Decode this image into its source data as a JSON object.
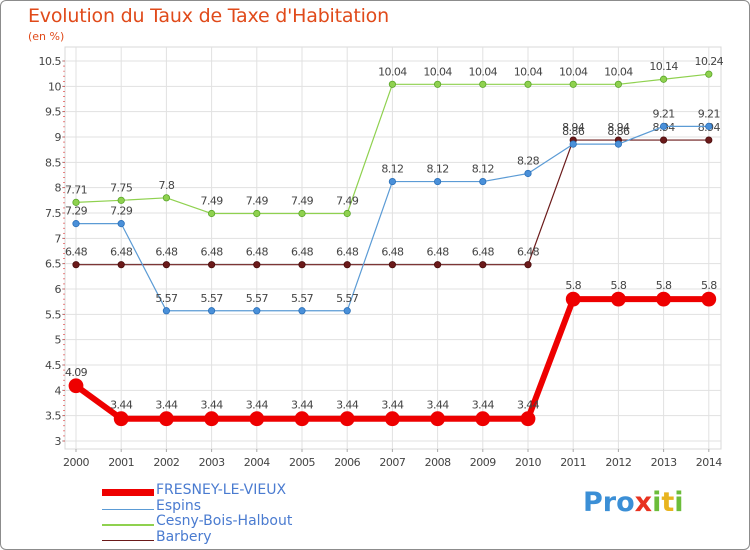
{
  "chart_data": {
    "type": "line",
    "title": "Evolution du Taux de Taxe d'Habitation",
    "subtitle": "(en %)",
    "x": [
      "2000",
      "2001",
      "2002",
      "2003",
      "2004",
      "2005",
      "2006",
      "2007",
      "2008",
      "2009",
      "2010",
      "2011",
      "2012",
      "2013",
      "2014"
    ],
    "yticks": [
      "3",
      "3.5",
      "4",
      "4.5",
      "5",
      "5.5",
      "6",
      "6.5",
      "7",
      "7.5",
      "8",
      "8.5",
      "9",
      "9.5",
      "10",
      "10.5"
    ],
    "ylim": [
      3,
      10.5
    ],
    "grid": true,
    "legend_position": "bottom-left",
    "series": [
      {
        "name": "FRESNEY-LE-VIEUX",
        "color": "#ee0000",
        "values": [
          4.09,
          3.44,
          3.44,
          3.44,
          3.44,
          3.44,
          3.44,
          3.44,
          3.44,
          3.44,
          3.44,
          5.8,
          5.8,
          5.8,
          5.8
        ],
        "labels": [
          "4.09",
          "3.44",
          "3.44",
          "3.44",
          "3.44",
          "3.44",
          "3.44",
          "3.44",
          "3.44",
          "3.44",
          "3.44",
          "5.8",
          "5.8",
          "5.8",
          "5.8"
        ]
      },
      {
        "name": "Espins",
        "color": "#5b9bd5",
        "values": [
          7.29,
          7.29,
          5.57,
          5.57,
          5.57,
          5.57,
          5.57,
          8.12,
          8.12,
          8.12,
          8.28,
          8.86,
          8.86,
          9.21,
          9.21
        ],
        "labels": [
          "7.29",
          "7.29",
          "5.57",
          "5.57",
          "5.57",
          "5.57",
          "5.57",
          "8.12",
          "8.12",
          "8.12",
          "8.28",
          "8.86",
          "8.86",
          "9.21",
          "9.21"
        ]
      },
      {
        "name": "Cesny-Bois-Halbout",
        "color": "#8fd14f",
        "values": [
          7.71,
          7.75,
          7.8,
          7.49,
          7.49,
          7.49,
          7.49,
          10.04,
          10.04,
          10.04,
          10.04,
          10.04,
          10.04,
          10.14,
          10.24
        ],
        "labels": [
          "7.71",
          "7.75",
          "7.8",
          "7.49",
          "7.49",
          "7.49",
          "7.49",
          "10.04",
          "10.04",
          "10.04",
          "10.04",
          "10.04",
          "10.04",
          "10.14",
          "10.24"
        ]
      },
      {
        "name": "Barbery",
        "color": "#6b1a1a",
        "values": [
          6.48,
          6.48,
          6.48,
          6.48,
          6.48,
          6.48,
          6.48,
          6.48,
          6.48,
          6.48,
          6.48,
          8.94,
          8.94,
          8.94,
          8.94
        ],
        "labels": [
          "6.48",
          "6.48",
          "6.48",
          "6.48",
          "6.48",
          "6.48",
          "6.48",
          "6.48",
          "6.48",
          "6.48",
          "6.48",
          "8.94",
          "8.94",
          "8.94",
          "8.94"
        ]
      }
    ]
  },
  "logo": {
    "p": "Pr",
    "o": "o",
    "x": "x",
    "i": "i",
    "t": "t",
    "i2": "i"
  }
}
